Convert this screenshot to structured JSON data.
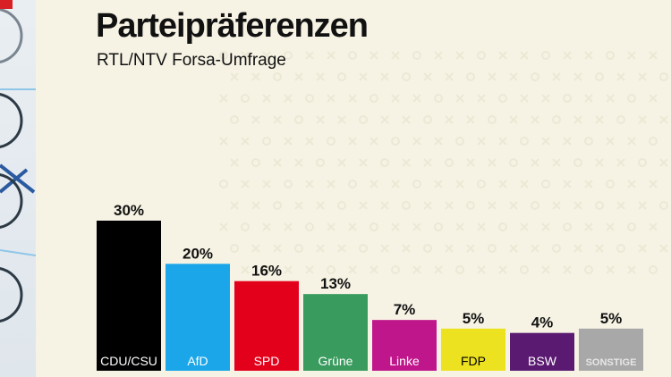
{
  "title": "Parteipräferenzen",
  "subtitle": "RTL/NTV Forsa-Umfrage",
  "chart_data": {
    "type": "bar",
    "title": "Parteipräferenzen",
    "subtitle": "RTL/NTV Forsa-Umfrage",
    "xlabel": "",
    "ylabel": "",
    "categories": [
      "CDU/CSU",
      "AfD",
      "SPD",
      "Grüne",
      "Linke",
      "FDP",
      "BSW",
      "SONSTIGE"
    ],
    "values": [
      30,
      20,
      16,
      13,
      7,
      5,
      4,
      5
    ],
    "value_labels": [
      "30%",
      "20%",
      "16%",
      "13%",
      "7%",
      "5%",
      "4%",
      "5%"
    ],
    "colors": [
      "#000000",
      "#1aa6e8",
      "#e3001b",
      "#3a9b5e",
      "#c0168b",
      "#ede21f",
      "#5a1a72",
      "#a8a8a8"
    ],
    "label_text_colors": [
      "#ffffff",
      "#ffffff",
      "#ffffff",
      "#ffffff",
      "#ffffff",
      "#000000",
      "#ffffff",
      "#e6e6e6"
    ],
    "ylim": [
      0,
      30
    ],
    "grid": false,
    "legend": "none"
  }
}
